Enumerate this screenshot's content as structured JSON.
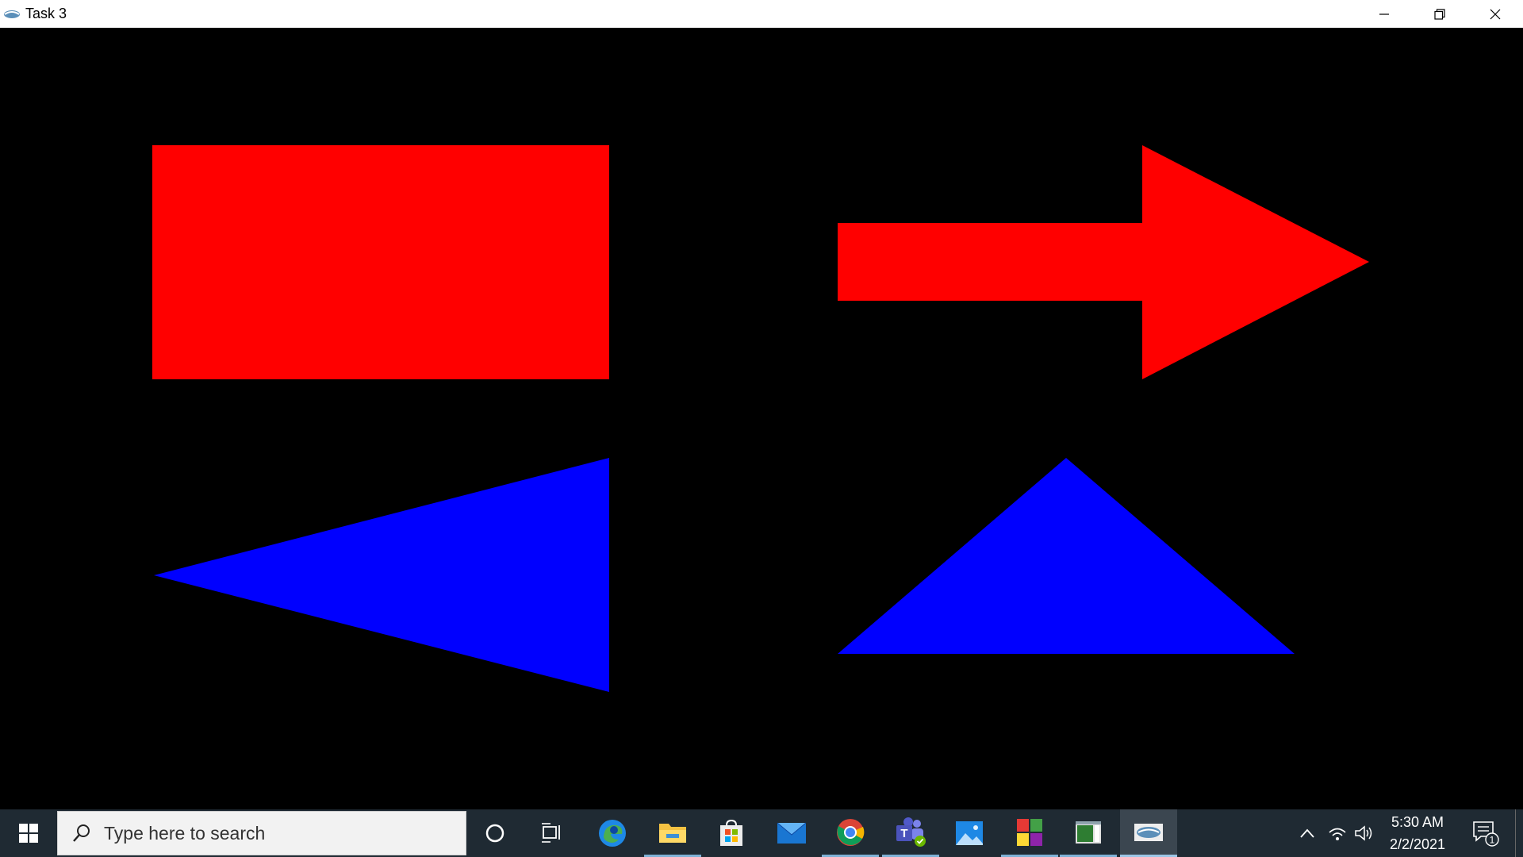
{
  "window": {
    "title": "Task 3",
    "app_icon": "app-logo-icon",
    "controls": {
      "minimize_icon": "minimize-icon",
      "restore_icon": "restore-icon",
      "close_icon": "close-icon"
    }
  },
  "canvas": {
    "background": "#000000",
    "shapes": [
      {
        "name": "rectangle",
        "color": "#ff0000"
      },
      {
        "name": "right-arrow",
        "color": "#ff0000"
      },
      {
        "name": "left-pointing-triangle",
        "color": "#0000ff"
      },
      {
        "name": "upward-triangle",
        "color": "#0000ff"
      }
    ]
  },
  "taskbar": {
    "search_placeholder": "Type here to search",
    "apps": [
      {
        "name": "cortana",
        "icon": "circle-icon"
      },
      {
        "name": "task-view",
        "icon": "task-view-icon"
      },
      {
        "name": "edge",
        "icon": "edge-icon"
      },
      {
        "name": "file-explorer",
        "icon": "folder-icon"
      },
      {
        "name": "store",
        "icon": "store-icon"
      },
      {
        "name": "mail",
        "icon": "mail-icon"
      },
      {
        "name": "chrome",
        "icon": "chrome-icon"
      },
      {
        "name": "teams",
        "icon": "teams-icon"
      },
      {
        "name": "photos",
        "icon": "photos-icon"
      },
      {
        "name": "app-colorful",
        "icon": "colorful-app-icon"
      },
      {
        "name": "app-window",
        "icon": "window-app-icon"
      },
      {
        "name": "app-opengl",
        "icon": "opengl-app-icon"
      }
    ],
    "clock": {
      "time": "5:30 AM",
      "date": "2/2/2021"
    },
    "notification_count": "1"
  }
}
